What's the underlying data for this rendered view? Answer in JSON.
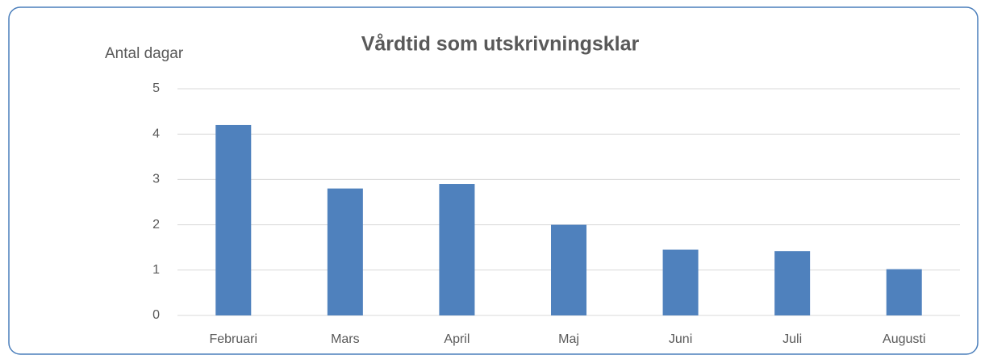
{
  "chart_data": {
    "type": "bar",
    "title": "Vårdtid som utskrivningsklar",
    "y_label": "Antal dagar",
    "categories": [
      "Februari",
      "Mars",
      "April",
      "Maj",
      "Juni",
      "Juli",
      "Augusti"
    ],
    "values": [
      4.2,
      2.8,
      2.9,
      2.0,
      1.45,
      1.42,
      1.02
    ],
    "color": "#4f81bd",
    "ylim": [
      0,
      5
    ],
    "yticks": [
      0,
      1,
      2,
      3,
      4,
      5
    ],
    "grid": true
  }
}
